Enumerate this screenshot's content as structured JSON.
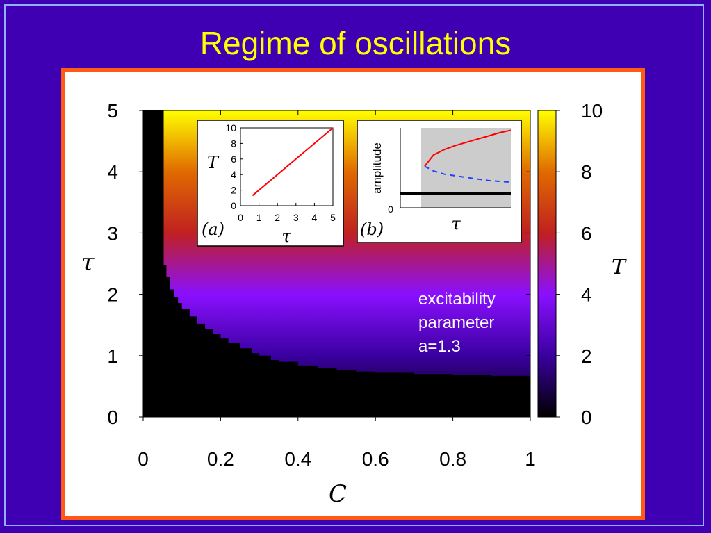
{
  "slide": {
    "title": "Regime of oscillations"
  },
  "annotation": {
    "lines": [
      "excitability",
      "parameter",
      "a=1.3"
    ],
    "color": "#ffffff"
  },
  "chart_data": [
    {
      "type": "heatmap",
      "xlabel": "C",
      "ylabel": "τ",
      "xlim": [
        0,
        1
      ],
      "ylim": [
        0,
        5
      ],
      "x_ticks": [
        "0",
        "0.2",
        "0.4",
        "0.6",
        "0.8",
        "1"
      ],
      "y_ticks": [
        "0",
        "1",
        "2",
        "3",
        "4",
        "5"
      ],
      "colorbar": {
        "label": "T",
        "range": [
          0,
          10
        ],
        "ticks": [
          "0",
          "2",
          "4",
          "6",
          "8",
          "10"
        ],
        "colormap": [
          "#000000",
          "#3a00a0",
          "#8a10ff",
          "#c02020",
          "#e06a00",
          "#ffff00"
        ]
      },
      "value_relation": "T ≈ 2τ (color varies with τ only)",
      "no_oscillation_color": "#000000",
      "no_oscillation_boundary": {
        "C": [
          0.0,
          0.053,
          0.053,
          0.06,
          0.07,
          0.08,
          0.09,
          0.1,
          0.12,
          0.14,
          0.16,
          0.18,
          0.2,
          0.22,
          0.25,
          0.28,
          0.3,
          0.33,
          0.35,
          0.4,
          0.45,
          0.5,
          0.55,
          0.6,
          0.7,
          0.8,
          0.9,
          1.0
        ],
        "tau_min": [
          5.0,
          5.0,
          2.48,
          2.28,
          2.08,
          1.96,
          1.86,
          1.76,
          1.64,
          1.52,
          1.43,
          1.35,
          1.28,
          1.21,
          1.12,
          1.04,
          1.0,
          0.93,
          0.9,
          0.84,
          0.8,
          0.77,
          0.74,
          0.72,
          0.7,
          0.68,
          0.67,
          0.66
        ]
      }
    },
    {
      "type": "line",
      "panel_label": "(a)",
      "xlabel": "τ",
      "ylabel": "T",
      "xlim": [
        0,
        5
      ],
      "ylim": [
        0,
        10
      ],
      "x_ticks": [
        "0",
        "1",
        "2",
        "3",
        "4",
        "5"
      ],
      "y_ticks": [
        "0",
        "2",
        "4",
        "6",
        "8",
        "10"
      ],
      "series": [
        {
          "x": [
            0.65,
            5.0
          ],
          "y": [
            1.3,
            10.0
          ],
          "color": "#ff0000"
        }
      ]
    },
    {
      "type": "line",
      "panel_label": "(b)",
      "xlabel": "τ",
      "ylabel": "amplitude",
      "y_ticks": [
        "0"
      ],
      "shaded_region": "right of bifurcation point (light gray)",
      "series": [
        {
          "style": "solid",
          "color": "#ff0000",
          "x": [
            0.22,
            0.3,
            0.4,
            0.5,
            0.6,
            0.7,
            0.8,
            0.9,
            1.0
          ],
          "y": [
            0.52,
            0.66,
            0.73,
            0.78,
            0.82,
            0.86,
            0.9,
            0.94,
            0.97
          ]
        },
        {
          "style": "dashed",
          "color": "#2040ff",
          "x": [
            0.22,
            0.3,
            0.4,
            0.5,
            0.6,
            0.7,
            0.8,
            0.9,
            1.0
          ],
          "y": [
            0.52,
            0.46,
            0.42,
            0.4,
            0.38,
            0.36,
            0.34,
            0.33,
            0.32
          ]
        },
        {
          "style": "solid",
          "color": "#000000",
          "x": [
            0.0,
            1.0
          ],
          "y": [
            0.18,
            0.18
          ]
        }
      ]
    }
  ]
}
